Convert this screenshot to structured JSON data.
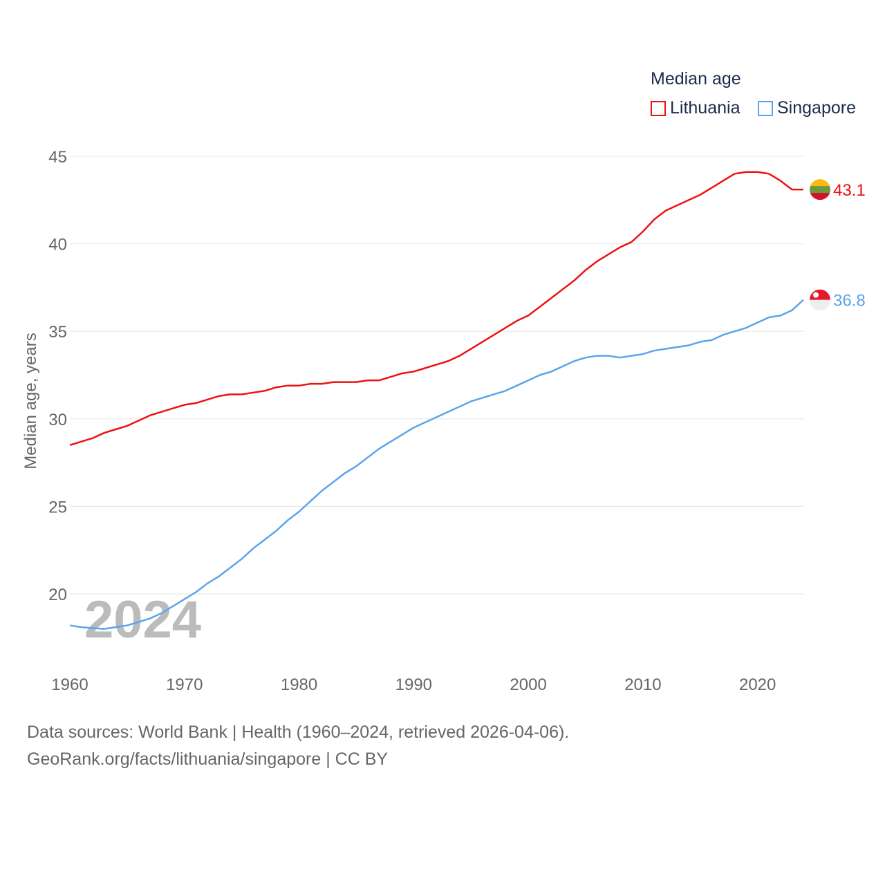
{
  "legend": {
    "title": "Median age",
    "items": [
      {
        "label": "Lithuania",
        "color": "#ee1111"
      },
      {
        "label": "Singapore",
        "color": "#5ba4ec"
      }
    ]
  },
  "year_watermark": "2024",
  "footer": {
    "line1": "Data sources: World Bank | Health (1960–2024, retrieved 2026-04-06).",
    "line2": "GeoRank.org/facts/lithuania/singapore | CC BY"
  },
  "chart_data": {
    "type": "line",
    "title": "Median age",
    "xlabel": "",
    "ylabel": "Median age, years",
    "xlim": [
      1960,
      2024
    ],
    "ylim": [
      16.5,
      46
    ],
    "x_ticks": [
      1960,
      1970,
      1980,
      1990,
      2000,
      2010,
      2020
    ],
    "y_ticks": [
      20,
      25,
      30,
      35,
      40,
      45
    ],
    "grid": true,
    "legend_position": "top-right",
    "x": [
      1960,
      1961,
      1962,
      1963,
      1964,
      1965,
      1966,
      1967,
      1968,
      1969,
      1970,
      1971,
      1972,
      1973,
      1974,
      1975,
      1976,
      1977,
      1978,
      1979,
      1980,
      1981,
      1982,
      1983,
      1984,
      1985,
      1986,
      1987,
      1988,
      1989,
      1990,
      1991,
      1992,
      1993,
      1994,
      1995,
      1996,
      1997,
      1998,
      1999,
      2000,
      2001,
      2002,
      2003,
      2004,
      2005,
      2006,
      2007,
      2008,
      2009,
      2010,
      2011,
      2012,
      2013,
      2014,
      2015,
      2016,
      2017,
      2018,
      2019,
      2020,
      2021,
      2022,
      2023,
      2024
    ],
    "series": [
      {
        "name": "Lithuania",
        "color": "#ee1111",
        "end_label": "43.1",
        "values": [
          28.5,
          28.7,
          28.9,
          29.2,
          29.4,
          29.6,
          29.9,
          30.2,
          30.4,
          30.6,
          30.8,
          30.9,
          31.1,
          31.3,
          31.4,
          31.4,
          31.5,
          31.6,
          31.8,
          31.9,
          31.9,
          32.0,
          32.0,
          32.1,
          32.1,
          32.1,
          32.2,
          32.2,
          32.4,
          32.6,
          32.7,
          32.9,
          33.1,
          33.3,
          33.6,
          34.0,
          34.4,
          34.8,
          35.2,
          35.6,
          35.9,
          36.4,
          36.9,
          37.4,
          37.9,
          38.5,
          39.0,
          39.4,
          39.8,
          40.1,
          40.7,
          41.4,
          41.9,
          42.2,
          42.5,
          42.8,
          43.2,
          43.6,
          44.0,
          44.1,
          44.1,
          44.0,
          43.6,
          43.1,
          43.1
        ]
      },
      {
        "name": "Singapore",
        "color": "#5ba4ec",
        "end_label": "36.8",
        "values": [
          18.2,
          18.1,
          18.05,
          18.0,
          18.1,
          18.2,
          18.4,
          18.6,
          18.9,
          19.3,
          19.7,
          20.1,
          20.6,
          21.0,
          21.5,
          22.0,
          22.6,
          23.1,
          23.6,
          24.2,
          24.7,
          25.3,
          25.9,
          26.4,
          26.9,
          27.3,
          27.8,
          28.3,
          28.7,
          29.1,
          29.5,
          29.8,
          30.1,
          30.4,
          30.7,
          31.0,
          31.2,
          31.4,
          31.6,
          31.9,
          32.2,
          32.5,
          32.7,
          33.0,
          33.3,
          33.5,
          33.6,
          33.6,
          33.5,
          33.6,
          33.7,
          33.9,
          34.0,
          34.1,
          34.2,
          34.4,
          34.5,
          34.8,
          35.0,
          35.2,
          35.5,
          35.8,
          35.9,
          36.2,
          36.8
        ]
      }
    ]
  }
}
